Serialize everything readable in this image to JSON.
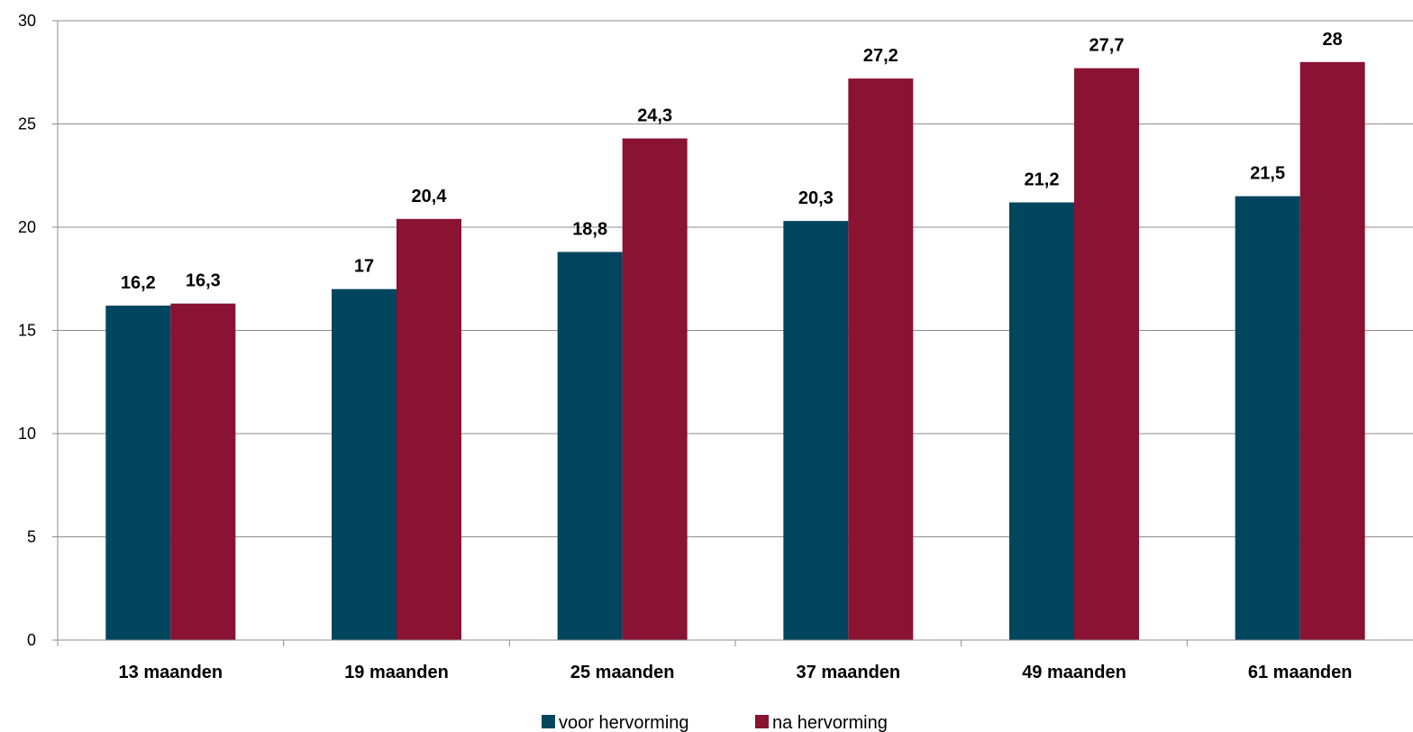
{
  "chart_data": {
    "type": "bar",
    "categories": [
      "13 maanden",
      "19 maanden",
      "25 maanden",
      "37 maanden",
      "49 maanden",
      "61 maanden"
    ],
    "series": [
      {
        "name": "voor hervorming",
        "color": "#01455f",
        "values": [
          16.2,
          17,
          18.8,
          20.3,
          21.2,
          21.5
        ],
        "labels": [
          "16,2",
          "17",
          "18,8",
          "20,3",
          "21,2",
          "21,5"
        ]
      },
      {
        "name": "na hervorming",
        "color": "#8a1232",
        "values": [
          16.3,
          20.4,
          24.3,
          27.2,
          27.7,
          28
        ],
        "labels": [
          "16,3",
          "20,4",
          "24,3",
          "27,2",
          "27,7",
          "28"
        ]
      }
    ],
    "ylim": [
      0,
      30
    ],
    "yticks": [
      "0",
      "5",
      "10",
      "15",
      "20",
      "25",
      "30"
    ],
    "ytick_values": [
      0,
      5,
      10,
      15,
      20,
      25,
      30
    ],
    "title": "",
    "xlabel": "",
    "ylabel": "",
    "grid": true,
    "legend_position": "bottom-center"
  }
}
